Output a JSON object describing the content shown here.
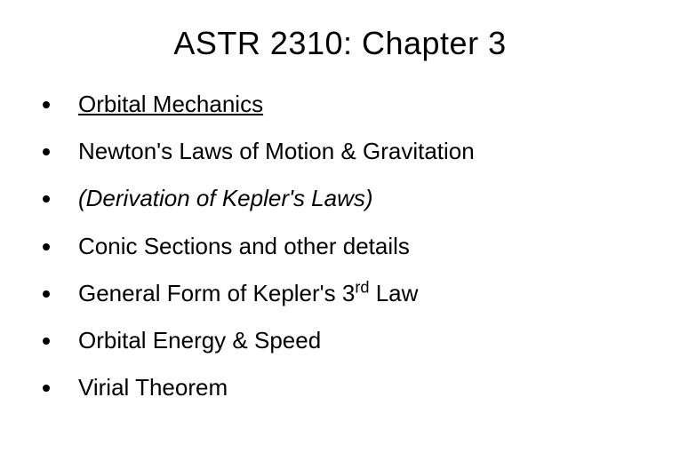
{
  "title": "ASTR 2310: Chapter 3",
  "items": [
    {
      "text": "Orbital Mechanics",
      "style": "underline"
    },
    {
      "text": "Newton's Laws of Motion & Gravitation",
      "style": "normal"
    },
    {
      "text": "(Derivation of Kepler's Laws)",
      "style": "italic"
    },
    {
      "text": "Conic Sections and other details",
      "style": "normal"
    },
    {
      "text": "General Form of Kepler's 3",
      "suffix": " Law",
      "sup": "rd",
      "style": "normal"
    },
    {
      "text": "Orbital Energy & Speed",
      "style": "normal"
    },
    {
      "text": "Virial Theorem",
      "style": "normal"
    }
  ],
  "colors": {
    "background": "#ffffff",
    "text": "#000000",
    "bullet": "#000000"
  },
  "typography": {
    "title_fontsize": 36,
    "item_fontsize": 26,
    "font_family": "Arial"
  }
}
